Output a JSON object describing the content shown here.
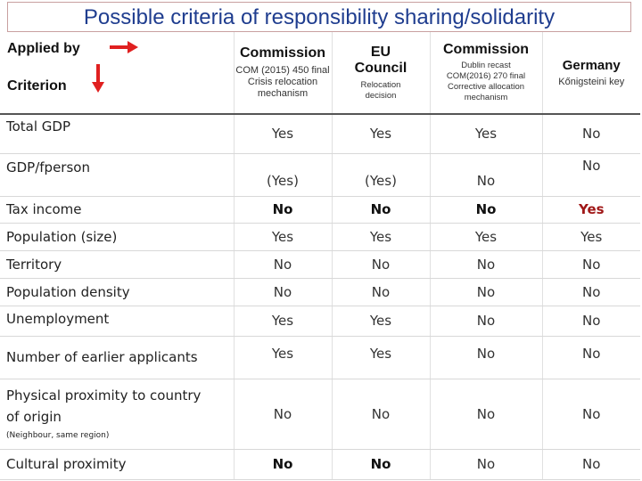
{
  "title": "Possible criteria of responsibility sharing/solidarity",
  "header": {
    "applied_by": "Applied by",
    "criterion": "Criterion",
    "arrow_color": "#e02020",
    "columns": [
      {
        "name": "Commission",
        "lines": [
          "COM (2015) 450 final",
          "Crisis relocation",
          "mechanism"
        ]
      },
      {
        "name_lines": [
          "EU",
          "Council"
        ],
        "lines": [
          "Relocation",
          "decision"
        ]
      },
      {
        "name": "Commission",
        "lines": [
          "Dublin recast",
          "COM(2016) 270 final",
          "Corrective allocation",
          "mechanism"
        ]
      },
      {
        "name": "Germany",
        "lines": [
          "Kőnigsteini key"
        ]
      }
    ]
  },
  "rows": [
    {
      "criterion": "Total GDP",
      "values": [
        "Yes",
        "Yes",
        "Yes",
        "No"
      ]
    },
    {
      "criterion": "GDP/fperson",
      "values": [
        "(Yes)",
        "(Yes)",
        "No",
        "No"
      ]
    },
    {
      "criterion": "Tax income",
      "values": [
        "No",
        "No",
        "No",
        "Yes"
      ]
    },
    {
      "criterion": "Population (size)",
      "values": [
        "Yes",
        "Yes",
        "Yes",
        "Yes"
      ]
    },
    {
      "criterion": "Territory",
      "values": [
        "No",
        "No",
        "No",
        "No"
      ]
    },
    {
      "criterion": "Population density",
      "values": [
        "No",
        "No",
        "No",
        "No"
      ]
    },
    {
      "criterion": "Unemployment",
      "values": [
        "Yes",
        "Yes",
        "No",
        "No"
      ]
    },
    {
      "criterion": "Number of earlier applicants",
      "values": [
        "Yes",
        "Yes",
        "No",
        "No"
      ]
    },
    {
      "criterion_lines": [
        "Physical proximity to country",
        "of origin"
      ],
      "note": "(Neighbour, same region)",
      "values": [
        "No",
        "No",
        "No",
        "No"
      ]
    },
    {
      "criterion": "Cultural proximity",
      "values": [
        "No",
        "No",
        "No",
        "No"
      ]
    }
  ],
  "colors": {
    "title": "#1f3d8f",
    "emphasis_red": "#a01818"
  }
}
